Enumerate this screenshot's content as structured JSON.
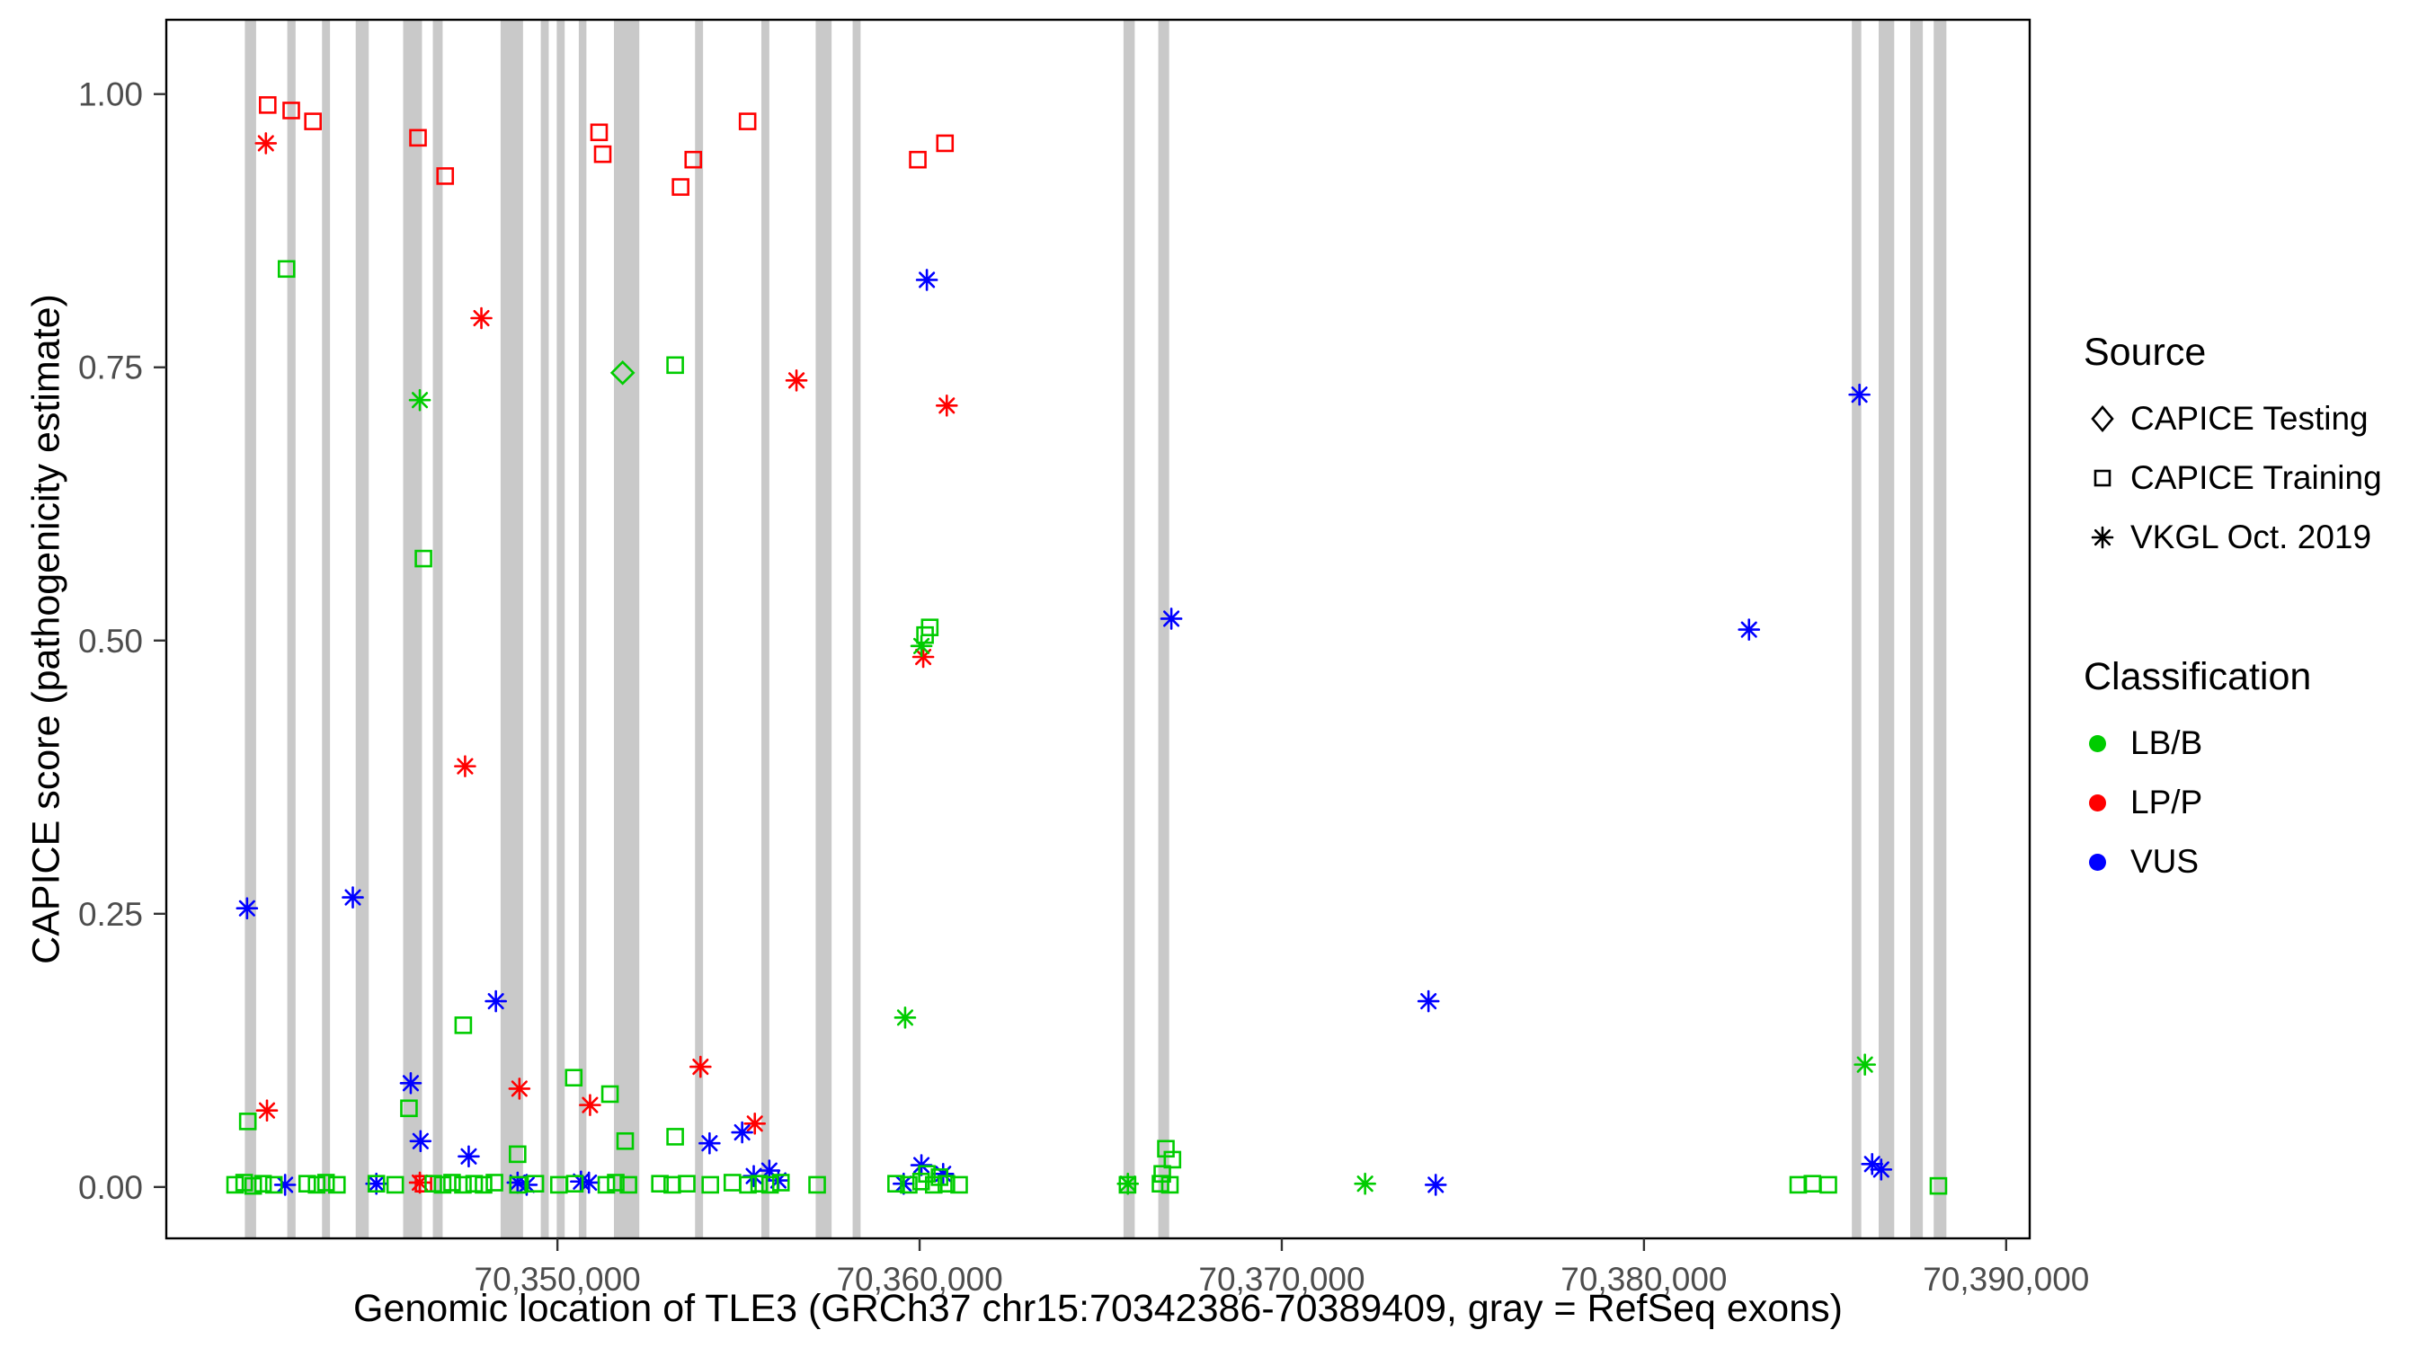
{
  "colors": {
    "LB/B": "#00CC00",
    "LP/P": "#FF0000",
    "VUS": "#0000FF",
    "exon": "#C9C9C9",
    "legend_marker": "#000000"
  },
  "legend": {
    "source_title": "Source",
    "source_items": [
      {
        "label": "CAPICE Testing",
        "shape": "diamond"
      },
      {
        "label": "CAPICE Training",
        "shape": "square"
      },
      {
        "label": "VKGL Oct. 2019",
        "shape": "asterisk"
      }
    ],
    "class_title": "Classification",
    "class_items": [
      {
        "label": "LB/B",
        "color": "#00CC00"
      },
      {
        "label": "LP/P",
        "color": "#FF0000"
      },
      {
        "label": "VUS",
        "color": "#0000FF"
      }
    ]
  },
  "chart_data": {
    "type": "scatter",
    "title": "",
    "xlabel": "Genomic location of TLE3 (GRCh37 chr15:70342386-70389409, gray = RefSeq exons)",
    "ylabel": "CAPICE score (pathogenicity estimate)",
    "x_domain": [
      70339200,
      70390650
    ],
    "y_domain": [
      -0.047,
      1.068
    ],
    "grid": false,
    "legend_position": "right",
    "x_ticks": [
      {
        "value": 70350000,
        "label": "70,350,000"
      },
      {
        "value": 70360000,
        "label": "70,360,000"
      },
      {
        "value": 70370000,
        "label": "70,370,000"
      },
      {
        "value": 70380000,
        "label": "70,380,000"
      },
      {
        "value": 70390000,
        "label": "70,390,000"
      }
    ],
    "y_ticks": [
      {
        "value": 1.0,
        "label": "1.00"
      },
      {
        "value": 0.75,
        "label": "0.75"
      },
      {
        "value": 0.5,
        "label": "0.50"
      },
      {
        "value": 0.25,
        "label": "0.25"
      },
      {
        "value": 0.0,
        "label": "0.00"
      }
    ],
    "exons": [
      [
        70341370,
        70341680
      ],
      [
        70342540,
        70342770
      ],
      [
        70343500,
        70343720
      ],
      [
        70344430,
        70344790
      ],
      [
        70345740,
        70346260
      ],
      [
        70346560,
        70346830
      ],
      [
        70348430,
        70349050
      ],
      [
        70349540,
        70349760
      ],
      [
        70349980,
        70350200
      ],
      [
        70350590,
        70350800
      ],
      [
        70351560,
        70352260
      ],
      [
        70353800,
        70354020
      ],
      [
        70355630,
        70355850
      ],
      [
        70357130,
        70357570
      ],
      [
        70358150,
        70358370
      ],
      [
        70365630,
        70365940
      ],
      [
        70366590,
        70366890
      ],
      [
        70385740,
        70386000
      ],
      [
        70386480,
        70386910
      ],
      [
        70387350,
        70387700
      ],
      [
        70388000,
        70388350
      ]
    ],
    "points": [
      {
        "x": 70342000,
        "y": 0.99,
        "shape": "square",
        "cls": "LP/P"
      },
      {
        "x": 70342650,
        "y": 0.985,
        "shape": "square",
        "cls": "LP/P"
      },
      {
        "x": 70343250,
        "y": 0.975,
        "shape": "square",
        "cls": "LP/P"
      },
      {
        "x": 70341950,
        "y": 0.955,
        "shape": "asterisk",
        "cls": "LP/P"
      },
      {
        "x": 70346150,
        "y": 0.96,
        "shape": "square",
        "cls": "LP/P"
      },
      {
        "x": 70346900,
        "y": 0.925,
        "shape": "square",
        "cls": "LP/P"
      },
      {
        "x": 70347900,
        "y": 0.795,
        "shape": "asterisk",
        "cls": "LP/P"
      },
      {
        "x": 70351150,
        "y": 0.965,
        "shape": "square",
        "cls": "LP/P"
      },
      {
        "x": 70351250,
        "y": 0.945,
        "shape": "square",
        "cls": "LP/P"
      },
      {
        "x": 70353400,
        "y": 0.915,
        "shape": "square",
        "cls": "LP/P"
      },
      {
        "x": 70353750,
        "y": 0.94,
        "shape": "square",
        "cls": "LP/P"
      },
      {
        "x": 70355250,
        "y": 0.975,
        "shape": "square",
        "cls": "LP/P"
      },
      {
        "x": 70359950,
        "y": 0.94,
        "shape": "square",
        "cls": "LP/P"
      },
      {
        "x": 70360700,
        "y": 0.955,
        "shape": "square",
        "cls": "LP/P"
      },
      {
        "x": 70356600,
        "y": 0.738,
        "shape": "asterisk",
        "cls": "LP/P"
      },
      {
        "x": 70360750,
        "y": 0.715,
        "shape": "asterisk",
        "cls": "LP/P"
      },
      {
        "x": 70360100,
        "y": 0.485,
        "shape": "asterisk",
        "cls": "LP/P"
      },
      {
        "x": 70347450,
        "y": 0.385,
        "shape": "asterisk",
        "cls": "LP/P"
      },
      {
        "x": 70353950,
        "y": 0.11,
        "shape": "asterisk",
        "cls": "LP/P"
      },
      {
        "x": 70348950,
        "y": 0.09,
        "shape": "asterisk",
        "cls": "LP/P"
      },
      {
        "x": 70350900,
        "y": 0.075,
        "shape": "asterisk",
        "cls": "LP/P"
      },
      {
        "x": 70341980,
        "y": 0.07,
        "shape": "asterisk",
        "cls": "LP/P"
      },
      {
        "x": 70355450,
        "y": 0.058,
        "shape": "asterisk",
        "cls": "LP/P"
      },
      {
        "x": 70346300,
        "y": 0.003,
        "shape": "square",
        "cls": "LP/P"
      },
      {
        "x": 70346200,
        "y": 0.004,
        "shape": "asterisk",
        "cls": "LP/P"
      },
      {
        "x": 70360200,
        "y": 0.83,
        "shape": "asterisk",
        "cls": "VUS"
      },
      {
        "x": 70385950,
        "y": 0.725,
        "shape": "asterisk",
        "cls": "VUS"
      },
      {
        "x": 70366950,
        "y": 0.52,
        "shape": "asterisk",
        "cls": "VUS"
      },
      {
        "x": 70382900,
        "y": 0.51,
        "shape": "asterisk",
        "cls": "VUS"
      },
      {
        "x": 70344350,
        "y": 0.265,
        "shape": "asterisk",
        "cls": "VUS"
      },
      {
        "x": 70341430,
        "y": 0.255,
        "shape": "asterisk",
        "cls": "VUS"
      },
      {
        "x": 70348300,
        "y": 0.17,
        "shape": "asterisk",
        "cls": "VUS"
      },
      {
        "x": 70374050,
        "y": 0.17,
        "shape": "asterisk",
        "cls": "VUS"
      },
      {
        "x": 70345950,
        "y": 0.095,
        "shape": "asterisk",
        "cls": "VUS"
      },
      {
        "x": 70346220,
        "y": 0.042,
        "shape": "asterisk",
        "cls": "VUS"
      },
      {
        "x": 70354200,
        "y": 0.04,
        "shape": "asterisk",
        "cls": "VUS"
      },
      {
        "x": 70347550,
        "y": 0.028,
        "shape": "asterisk",
        "cls": "VUS"
      },
      {
        "x": 70355100,
        "y": 0.05,
        "shape": "asterisk",
        "cls": "VUS"
      },
      {
        "x": 70355850,
        "y": 0.015,
        "shape": "asterisk",
        "cls": "VUS"
      },
      {
        "x": 70360050,
        "y": 0.02,
        "shape": "asterisk",
        "cls": "VUS"
      },
      {
        "x": 70360650,
        "y": 0.012,
        "shape": "asterisk",
        "cls": "VUS"
      },
      {
        "x": 70386300,
        "y": 0.021,
        "shape": "asterisk",
        "cls": "VUS"
      },
      {
        "x": 70386550,
        "y": 0.016,
        "shape": "asterisk",
        "cls": "VUS"
      },
      {
        "x": 70342480,
        "y": 0.002,
        "shape": "asterisk",
        "cls": "VUS"
      },
      {
        "x": 70345000,
        "y": 0.003,
        "shape": "asterisk",
        "cls": "VUS"
      },
      {
        "x": 70348900,
        "y": 0.004,
        "shape": "asterisk",
        "cls": "VUS"
      },
      {
        "x": 70349150,
        "y": 0.002,
        "shape": "asterisk",
        "cls": "VUS"
      },
      {
        "x": 70350650,
        "y": 0.005,
        "shape": "asterisk",
        "cls": "VUS"
      },
      {
        "x": 70350870,
        "y": 0.004,
        "shape": "asterisk",
        "cls": "VUS"
      },
      {
        "x": 70355420,
        "y": 0.01,
        "shape": "asterisk",
        "cls": "VUS"
      },
      {
        "x": 70356100,
        "y": 0.006,
        "shape": "asterisk",
        "cls": "VUS"
      },
      {
        "x": 70359560,
        "y": 0.003,
        "shape": "asterisk",
        "cls": "VUS"
      },
      {
        "x": 70374250,
        "y": 0.002,
        "shape": "asterisk",
        "cls": "VUS"
      },
      {
        "x": 70351800,
        "y": 0.745,
        "shape": "diamond",
        "cls": "LB/B"
      },
      {
        "x": 70342520,
        "y": 0.84,
        "shape": "square",
        "cls": "LB/B"
      },
      {
        "x": 70346200,
        "y": 0.72,
        "shape": "asterisk",
        "cls": "LB/B"
      },
      {
        "x": 70346300,
        "y": 0.575,
        "shape": "square",
        "cls": "LB/B"
      },
      {
        "x": 70353250,
        "y": 0.752,
        "shape": "square",
        "cls": "LB/B"
      },
      {
        "x": 70360150,
        "y": 0.505,
        "shape": "square",
        "cls": "LB/B"
      },
      {
        "x": 70360280,
        "y": 0.512,
        "shape": "square",
        "cls": "LB/B"
      },
      {
        "x": 70360050,
        "y": 0.495,
        "shape": "asterisk",
        "cls": "LB/B"
      },
      {
        "x": 70347400,
        "y": 0.148,
        "shape": "square",
        "cls": "LB/B"
      },
      {
        "x": 70359600,
        "y": 0.155,
        "shape": "asterisk",
        "cls": "LB/B"
      },
      {
        "x": 70350450,
        "y": 0.1,
        "shape": "square",
        "cls": "LB/B"
      },
      {
        "x": 70351450,
        "y": 0.085,
        "shape": "square",
        "cls": "LB/B"
      },
      {
        "x": 70345900,
        "y": 0.072,
        "shape": "square",
        "cls": "LB/B"
      },
      {
        "x": 70341450,
        "y": 0.06,
        "shape": "square",
        "cls": "LB/B"
      },
      {
        "x": 70386100,
        "y": 0.112,
        "shape": "asterisk",
        "cls": "LB/B"
      },
      {
        "x": 70348900,
        "y": 0.03,
        "shape": "square",
        "cls": "LB/B"
      },
      {
        "x": 70351870,
        "y": 0.042,
        "shape": "square",
        "cls": "LB/B"
      },
      {
        "x": 70353250,
        "y": 0.046,
        "shape": "square",
        "cls": "LB/B"
      },
      {
        "x": 70366800,
        "y": 0.035,
        "shape": "square",
        "cls": "LB/B"
      },
      {
        "x": 70366980,
        "y": 0.025,
        "shape": "square",
        "cls": "LB/B"
      },
      {
        "x": 70366700,
        "y": 0.012,
        "shape": "square",
        "cls": "LB/B"
      },
      {
        "x": 70365750,
        "y": 0.003,
        "shape": "asterisk",
        "cls": "LB/B"
      },
      {
        "x": 70372300,
        "y": 0.003,
        "shape": "asterisk",
        "cls": "LB/B"
      },
      {
        "x": 70360200,
        "y": 0.012,
        "shape": "square",
        "cls": "LB/B"
      },
      {
        "x": 70360550,
        "y": 0.009,
        "shape": "square",
        "cls": "LB/B"
      },
      {
        "x": 70341100,
        "y": 0.002,
        "shape": "square",
        "cls": "LB/B"
      },
      {
        "x": 70341350,
        "y": 0.004,
        "shape": "square",
        "cls": "LB/B"
      },
      {
        "x": 70341600,
        "y": 0.001,
        "shape": "square",
        "cls": "LB/B"
      },
      {
        "x": 70341870,
        "y": 0.003,
        "shape": "square",
        "cls": "LB/B"
      },
      {
        "x": 70342170,
        "y": 0.002,
        "shape": "square",
        "cls": "LB/B"
      },
      {
        "x": 70343090,
        "y": 0.003,
        "shape": "square",
        "cls": "LB/B"
      },
      {
        "x": 70343350,
        "y": 0.002,
        "shape": "square",
        "cls": "LB/B"
      },
      {
        "x": 70343610,
        "y": 0.004,
        "shape": "square",
        "cls": "LB/B"
      },
      {
        "x": 70343910,
        "y": 0.002,
        "shape": "square",
        "cls": "LB/B"
      },
      {
        "x": 70345000,
        "y": 0.003,
        "shape": "square",
        "cls": "LB/B"
      },
      {
        "x": 70345520,
        "y": 0.002,
        "shape": "square",
        "cls": "LB/B"
      },
      {
        "x": 70346570,
        "y": 0.003,
        "shape": "square",
        "cls": "LB/B"
      },
      {
        "x": 70346830,
        "y": 0.002,
        "shape": "square",
        "cls": "LB/B"
      },
      {
        "x": 70347090,
        "y": 0.004,
        "shape": "square",
        "cls": "LB/B"
      },
      {
        "x": 70347390,
        "y": 0.002,
        "shape": "square",
        "cls": "LB/B"
      },
      {
        "x": 70347700,
        "y": 0.003,
        "shape": "square",
        "cls": "LB/B"
      },
      {
        "x": 70347960,
        "y": 0.002,
        "shape": "square",
        "cls": "LB/B"
      },
      {
        "x": 70348260,
        "y": 0.004,
        "shape": "square",
        "cls": "LB/B"
      },
      {
        "x": 70348910,
        "y": 0.002,
        "shape": "square",
        "cls": "LB/B"
      },
      {
        "x": 70349390,
        "y": 0.003,
        "shape": "square",
        "cls": "LB/B"
      },
      {
        "x": 70350040,
        "y": 0.002,
        "shape": "square",
        "cls": "LB/B"
      },
      {
        "x": 70350480,
        "y": 0.003,
        "shape": "square",
        "cls": "LB/B"
      },
      {
        "x": 70351350,
        "y": 0.002,
        "shape": "square",
        "cls": "LB/B"
      },
      {
        "x": 70351610,
        "y": 0.004,
        "shape": "square",
        "cls": "LB/B"
      },
      {
        "x": 70351960,
        "y": 0.002,
        "shape": "square",
        "cls": "LB/B"
      },
      {
        "x": 70352830,
        "y": 0.003,
        "shape": "square",
        "cls": "LB/B"
      },
      {
        "x": 70353170,
        "y": 0.002,
        "shape": "square",
        "cls": "LB/B"
      },
      {
        "x": 70353570,
        "y": 0.003,
        "shape": "square",
        "cls": "LB/B"
      },
      {
        "x": 70354220,
        "y": 0.002,
        "shape": "square",
        "cls": "LB/B"
      },
      {
        "x": 70354830,
        "y": 0.004,
        "shape": "square",
        "cls": "LB/B"
      },
      {
        "x": 70355260,
        "y": 0.002,
        "shape": "square",
        "cls": "LB/B"
      },
      {
        "x": 70355570,
        "y": 0.003,
        "shape": "square",
        "cls": "LB/B"
      },
      {
        "x": 70355870,
        "y": 0.002,
        "shape": "square",
        "cls": "LB/B"
      },
      {
        "x": 70356170,
        "y": 0.004,
        "shape": "square",
        "cls": "LB/B"
      },
      {
        "x": 70357170,
        "y": 0.002,
        "shape": "square",
        "cls": "LB/B"
      },
      {
        "x": 70359350,
        "y": 0.003,
        "shape": "square",
        "cls": "LB/B"
      },
      {
        "x": 70359700,
        "y": 0.002,
        "shape": "square",
        "cls": "LB/B"
      },
      {
        "x": 70360040,
        "y": 0.005,
        "shape": "square",
        "cls": "LB/B"
      },
      {
        "x": 70360390,
        "y": 0.002,
        "shape": "square",
        "cls": "LB/B"
      },
      {
        "x": 70360740,
        "y": 0.003,
        "shape": "square",
        "cls": "LB/B"
      },
      {
        "x": 70361090,
        "y": 0.002,
        "shape": "square",
        "cls": "LB/B"
      },
      {
        "x": 70365740,
        "y": 0.002,
        "shape": "square",
        "cls": "LB/B"
      },
      {
        "x": 70366650,
        "y": 0.003,
        "shape": "square",
        "cls": "LB/B"
      },
      {
        "x": 70366910,
        "y": 0.002,
        "shape": "square",
        "cls": "LB/B"
      },
      {
        "x": 70384260,
        "y": 0.002,
        "shape": "square",
        "cls": "LB/B"
      },
      {
        "x": 70384650,
        "y": 0.003,
        "shape": "square",
        "cls": "LB/B"
      },
      {
        "x": 70385090,
        "y": 0.002,
        "shape": "square",
        "cls": "LB/B"
      },
      {
        "x": 70388130,
        "y": 0.001,
        "shape": "square",
        "cls": "LB/B"
      }
    ]
  }
}
